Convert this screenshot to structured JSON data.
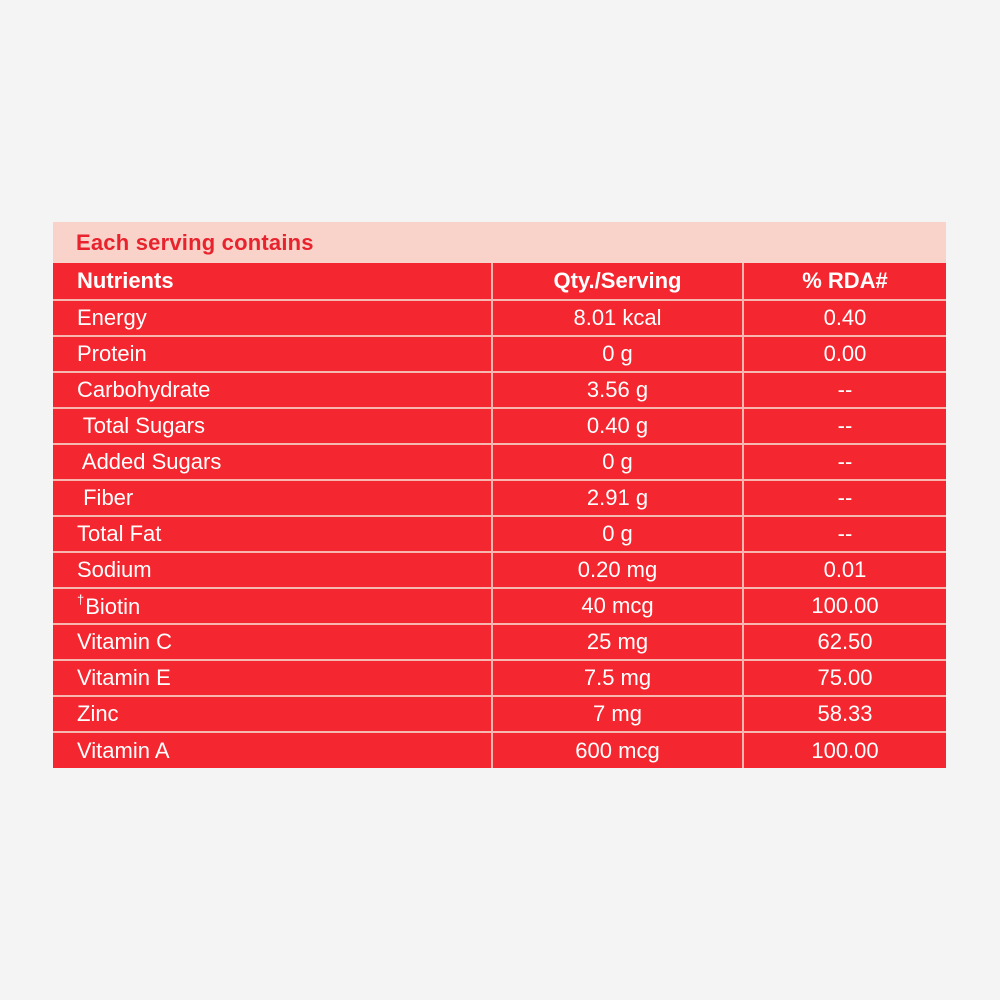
{
  "panel": {
    "title": "Each serving contains",
    "colors": {
      "header_bg": "#f9d2c9",
      "title_text": "#e8232e",
      "table_bg": "#f4262f",
      "grid_lines": "#f6b7b0",
      "cell_text": "#ffffff",
      "page_bg": "#f4f4f4"
    }
  },
  "table": {
    "headers": {
      "nutrient": "Nutrients",
      "qty": "Qty./Serving",
      "rda": "% RDA#"
    },
    "rows": [
      {
        "name": "Energy",
        "qty": "8.01 kcal",
        "rda": "0.40"
      },
      {
        "name": "Protein",
        "qty": "0 g",
        "rda": "0.00"
      },
      {
        "name": "Carbohydrate",
        "qty": "3.56 g",
        "rda": "--"
      },
      {
        "name": " Total Sugars",
        "qty": "0.40 g",
        "rda": "--"
      },
      {
        "name": " Added Sugars",
        "qty": "0 g",
        "rda": "--"
      },
      {
        "name": " Fiber",
        "qty": "2.91 g",
        "rda": "--"
      },
      {
        "name": "Total Fat",
        "qty": "0 g",
        "rda": "--"
      },
      {
        "name": "Sodium",
        "qty": "0.20 mg",
        "rda": "0.01"
      },
      {
        "mark": "†",
        "name": "Biotin",
        "qty": "40 mcg",
        "rda": "100.00"
      },
      {
        "name": "Vitamin C",
        "qty": "25 mg",
        "rda": "62.50"
      },
      {
        "name": "Vitamin E",
        "qty": "7.5 mg",
        "rda": "75.00"
      },
      {
        "name": "Zinc",
        "qty": "7 mg",
        "rda": "58.33"
      },
      {
        "name": "Vitamin A",
        "qty": "600 mcg",
        "rda": "100.00"
      }
    ]
  }
}
